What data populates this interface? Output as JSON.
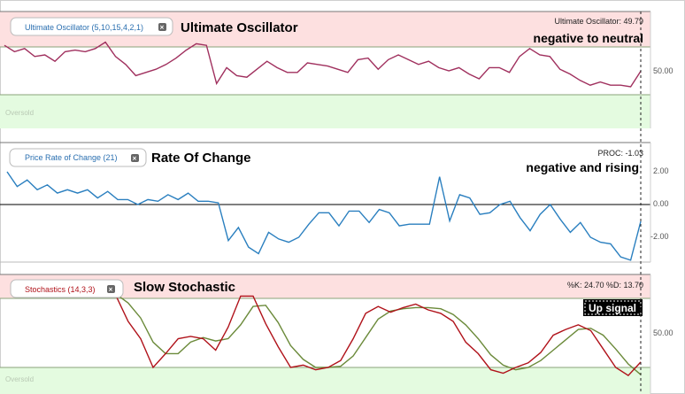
{
  "colors": {
    "overbought_zone": "#fde0e0",
    "oversold_zone": "#e4fbe0",
    "uo_line": "#a0305e",
    "roc_line": "#2a7fbf",
    "stoch_k": "#b0121a",
    "stoch_d": "#6b8a3a"
  },
  "panels": {
    "uo": {
      "indicator_label": "Ultimate Oscillator (5,10,15,4,2,1)",
      "title": "Ultimate Oscillator",
      "readout": "Ultimate Oscillator: 49.79",
      "annotation": "negative to neutral",
      "zone_label": "Oversold",
      "tick_labels": [
        "50.00"
      ]
    },
    "roc": {
      "indicator_label": "Price Rate of Change (21)",
      "title": "Rate Of Change",
      "readout": "PROC: -1.03",
      "annotation": "negative and rising",
      "tick_labels": [
        "2.00",
        "0.00",
        "-2.00"
      ]
    },
    "stoch": {
      "indicator_label": "Stochastics (14,3,3)",
      "title": "Slow Stochastic",
      "readout": "%K: 24.70 %D: 13.70",
      "annotation": "Up signal",
      "zone_label": "Oversold",
      "tick_labels": [
        "50.00"
      ]
    }
  },
  "chart_data": [
    {
      "type": "line",
      "title": "Ultimate Oscillator",
      "ylim": [
        20,
        80
      ],
      "reference_lines": [
        70,
        30
      ],
      "series": [
        {
          "name": "Ultimate Oscillator",
          "values": [
            66,
            62,
            64,
            59,
            60,
            56,
            62,
            63,
            62,
            64,
            68,
            59,
            54,
            47,
            49,
            51,
            54,
            58,
            63,
            67,
            66,
            42,
            52,
            47,
            46,
            51,
            56,
            52,
            49,
            49,
            55,
            54,
            53,
            51,
            49,
            57,
            58,
            51,
            57,
            60,
            57,
            54,
            56,
            52,
            50,
            52,
            48,
            45,
            52,
            52,
            49,
            59,
            64,
            60,
            59,
            51,
            48,
            44,
            41,
            43,
            41,
            41,
            40,
            49.79
          ]
        }
      ]
    },
    {
      "type": "line",
      "title": "Rate Of Change",
      "ylim": [
        -3.5,
        3.5
      ],
      "reference_lines": [
        0
      ],
      "series": [
        {
          "name": "PROC",
          "values": [
            2.0,
            1.1,
            1.5,
            0.9,
            1.2,
            0.7,
            0.9,
            0.7,
            0.9,
            0.4,
            0.8,
            0.3,
            0.3,
            0.0,
            0.3,
            0.2,
            0.6,
            0.3,
            0.7,
            0.2,
            0.2,
            0.1,
            -2.2,
            -1.4,
            -2.6,
            -3.0,
            -1.7,
            -2.1,
            -2.3,
            -2.0,
            -1.2,
            -0.5,
            -0.5,
            -1.3,
            -0.4,
            -0.4,
            -1.1,
            -0.3,
            -0.5,
            -1.3,
            -1.2,
            -1.2,
            -1.2,
            1.7,
            -1.0,
            0.6,
            0.4,
            -0.6,
            -0.5,
            0.0,
            0.2,
            -0.8,
            -1.6,
            -0.6,
            0.0,
            -0.9,
            -1.7,
            -1.1,
            -2.0,
            -2.3,
            -2.4,
            -3.2,
            -3.4,
            -1.03
          ]
        }
      ]
    },
    {
      "type": "line",
      "title": "Slow Stochastic",
      "ylim": [
        0,
        100
      ],
      "reference_lines": [
        80,
        20
      ],
      "series": [
        {
          "name": "%K",
          "values": [
            88,
            85,
            85,
            84,
            86,
            83,
            60,
            45,
            20,
            32,
            45,
            47,
            45,
            35,
            55,
            82,
            82,
            58,
            38,
            20,
            22,
            18,
            20,
            26,
            45,
            67,
            73,
            68,
            72,
            75,
            70,
            67,
            60,
            42,
            32,
            18,
            15,
            20,
            24,
            33,
            48,
            53,
            57,
            52,
            36,
            20,
            13,
            24.7
          ]
        },
        {
          "name": "%D",
          "values": [
            86,
            86,
            86,
            85,
            85,
            84,
            76,
            63,
            42,
            32,
            32,
            42,
            46,
            43,
            45,
            57,
            73,
            74,
            59,
            39,
            27,
            20,
            20,
            21,
            30,
            46,
            62,
            69,
            71,
            72,
            72,
            71,
            66,
            57,
            45,
            31,
            22,
            18,
            20,
            26,
            35,
            44,
            53,
            54,
            48,
            36,
            23,
            13.7
          ]
        }
      ]
    }
  ]
}
